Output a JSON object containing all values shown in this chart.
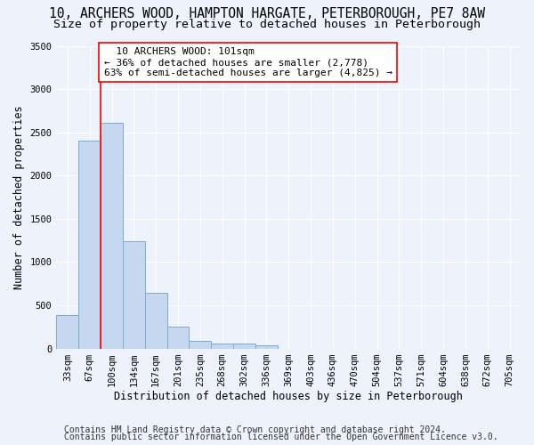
{
  "title1": "10, ARCHERS WOOD, HAMPTON HARGATE, PETERBOROUGH, PE7 8AW",
  "title2": "Size of property relative to detached houses in Peterborough",
  "xlabel": "Distribution of detached houses by size in Peterborough",
  "ylabel": "Number of detached properties",
  "categories": [
    "33sqm",
    "67sqm",
    "100sqm",
    "134sqm",
    "167sqm",
    "201sqm",
    "235sqm",
    "268sqm",
    "302sqm",
    "336sqm",
    "369sqm",
    "403sqm",
    "436sqm",
    "470sqm",
    "504sqm",
    "537sqm",
    "571sqm",
    "604sqm",
    "638sqm",
    "672sqm",
    "705sqm"
  ],
  "values": [
    390,
    2400,
    2610,
    1240,
    640,
    255,
    90,
    55,
    55,
    40,
    0,
    0,
    0,
    0,
    0,
    0,
    0,
    0,
    0,
    0,
    0
  ],
  "bar_color": "#c5d8f0",
  "bar_edge_color": "#7aadd4",
  "ylim": [
    0,
    3500
  ],
  "yticks": [
    0,
    500,
    1000,
    1500,
    2000,
    2500,
    3000,
    3500
  ],
  "property_label": "10 ARCHERS WOOD: 101sqm",
  "pct_smaller": 36,
  "n_smaller": 2778,
  "pct_larger_semi": 63,
  "n_larger_semi": 4825,
  "vline_x": 1.5,
  "footer1": "Contains HM Land Registry data © Crown copyright and database right 2024.",
  "footer2": "Contains public sector information licensed under the Open Government Licence v3.0.",
  "background_color": "#edf2fb",
  "plot_bg_color": "#edf2fb",
  "grid_color": "#ffffff",
  "title1_fontsize": 10.5,
  "title2_fontsize": 9.5,
  "axis_label_fontsize": 8.5,
  "tick_fontsize": 7.5,
  "annotation_fontsize": 8,
  "footer_fontsize": 7
}
